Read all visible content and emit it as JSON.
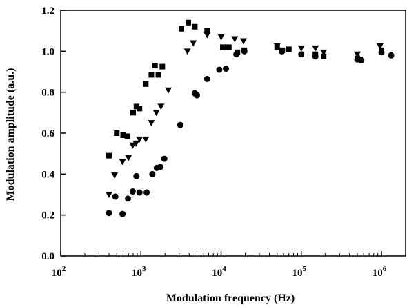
{
  "chart_data": {
    "type": "scatter",
    "title": "",
    "xlabel": "Modulation frequency (Hz)",
    "ylabel": "Modulation amplitude (a.u.)",
    "x_scale": "log",
    "xlim": [
      100,
      2000000
    ],
    "ylim": [
      0.0,
      1.2
    ],
    "x_ticks": [
      {
        "value": 100,
        "base": "10",
        "exp": "2"
      },
      {
        "value": 1000,
        "base": "10",
        "exp": "3"
      },
      {
        "value": 10000,
        "base": "10",
        "exp": "4"
      },
      {
        "value": 100000,
        "base": "10",
        "exp": "5"
      },
      {
        "value": 1000000,
        "base": "10",
        "exp": "6"
      }
    ],
    "y_ticks": [
      {
        "value": 0.0,
        "label": "0.0"
      },
      {
        "value": 0.2,
        "label": "0.2"
      },
      {
        "value": 0.4,
        "label": "0.4"
      },
      {
        "value": 0.6,
        "label": "0.6"
      },
      {
        "value": 0.8,
        "label": "0.8"
      },
      {
        "value": 1.0,
        "label": "1.0"
      },
      {
        "value": 1.2,
        "label": "1.2"
      }
    ],
    "grid": false,
    "legend": "none",
    "series": [
      {
        "marker": "square",
        "color": "#000000",
        "points": [
          [
            400,
            0.49
          ],
          [
            500,
            0.6
          ],
          [
            600,
            0.59
          ],
          [
            680,
            0.585
          ],
          [
            800,
            0.7
          ],
          [
            880,
            0.73
          ],
          [
            960,
            0.72
          ],
          [
            1150,
            0.84
          ],
          [
            1350,
            0.885
          ],
          [
            1500,
            0.93
          ],
          [
            1650,
            0.885
          ],
          [
            1850,
            0.925
          ],
          [
            3200,
            1.11
          ],
          [
            3900,
            1.14
          ],
          [
            4700,
            1.12
          ],
          [
            6700,
            1.1
          ],
          [
            10500,
            1.02
          ],
          [
            12500,
            1.02
          ],
          [
            16000,
            0.995
          ],
          [
            19500,
            1.005
          ],
          [
            50000,
            1.02
          ],
          [
            58000,
            1.005
          ],
          [
            70000,
            1.01
          ],
          [
            100000,
            0.985
          ],
          [
            150000,
            0.985
          ],
          [
            190000,
            0.975
          ],
          [
            500000,
            0.965
          ],
          [
            540000,
            0.96
          ],
          [
            1000000,
            1.005
          ]
        ]
      },
      {
        "marker": "triangle-down",
        "color": "#000000",
        "points": [
          [
            400,
            0.3
          ],
          [
            470,
            0.395
          ],
          [
            590,
            0.46
          ],
          [
            700,
            0.48
          ],
          [
            790,
            0.54
          ],
          [
            870,
            0.55
          ],
          [
            960,
            0.57
          ],
          [
            1150,
            0.57
          ],
          [
            1350,
            0.65
          ],
          [
            1560,
            0.7
          ],
          [
            1780,
            0.73
          ],
          [
            2200,
            0.81
          ],
          [
            3800,
            1.0
          ],
          [
            4500,
            1.04
          ],
          [
            6700,
            1.08
          ],
          [
            10000,
            1.07
          ],
          [
            14800,
            1.06
          ],
          [
            19000,
            1.05
          ],
          [
            50000,
            1.025
          ],
          [
            100000,
            1.015
          ],
          [
            150000,
            1.015
          ],
          [
            190000,
            0.995
          ],
          [
            500000,
            0.985
          ],
          [
            960000,
            1.025
          ]
        ]
      },
      {
        "marker": "circle",
        "color": "#000000",
        "points": [
          [
            400,
            0.21
          ],
          [
            480,
            0.29
          ],
          [
            590,
            0.205
          ],
          [
            690,
            0.28
          ],
          [
            790,
            0.315
          ],
          [
            880,
            0.39
          ],
          [
            960,
            0.31
          ],
          [
            1180,
            0.31
          ],
          [
            1390,
            0.4
          ],
          [
            1580,
            0.43
          ],
          [
            1750,
            0.435
          ],
          [
            1960,
            0.475
          ],
          [
            3100,
            0.64
          ],
          [
            4700,
            0.795
          ],
          [
            5000,
            0.785
          ],
          [
            6700,
            0.865
          ],
          [
            9500,
            0.91
          ],
          [
            11500,
            0.915
          ],
          [
            15500,
            0.985
          ],
          [
            19500,
            1.0
          ],
          [
            57000,
            1.0
          ],
          [
            100000,
            0.985
          ],
          [
            150000,
            0.975
          ],
          [
            500000,
            0.96
          ],
          [
            560000,
            0.955
          ],
          [
            1000000,
            0.995
          ],
          [
            1320000,
            0.98
          ]
        ]
      }
    ]
  }
}
